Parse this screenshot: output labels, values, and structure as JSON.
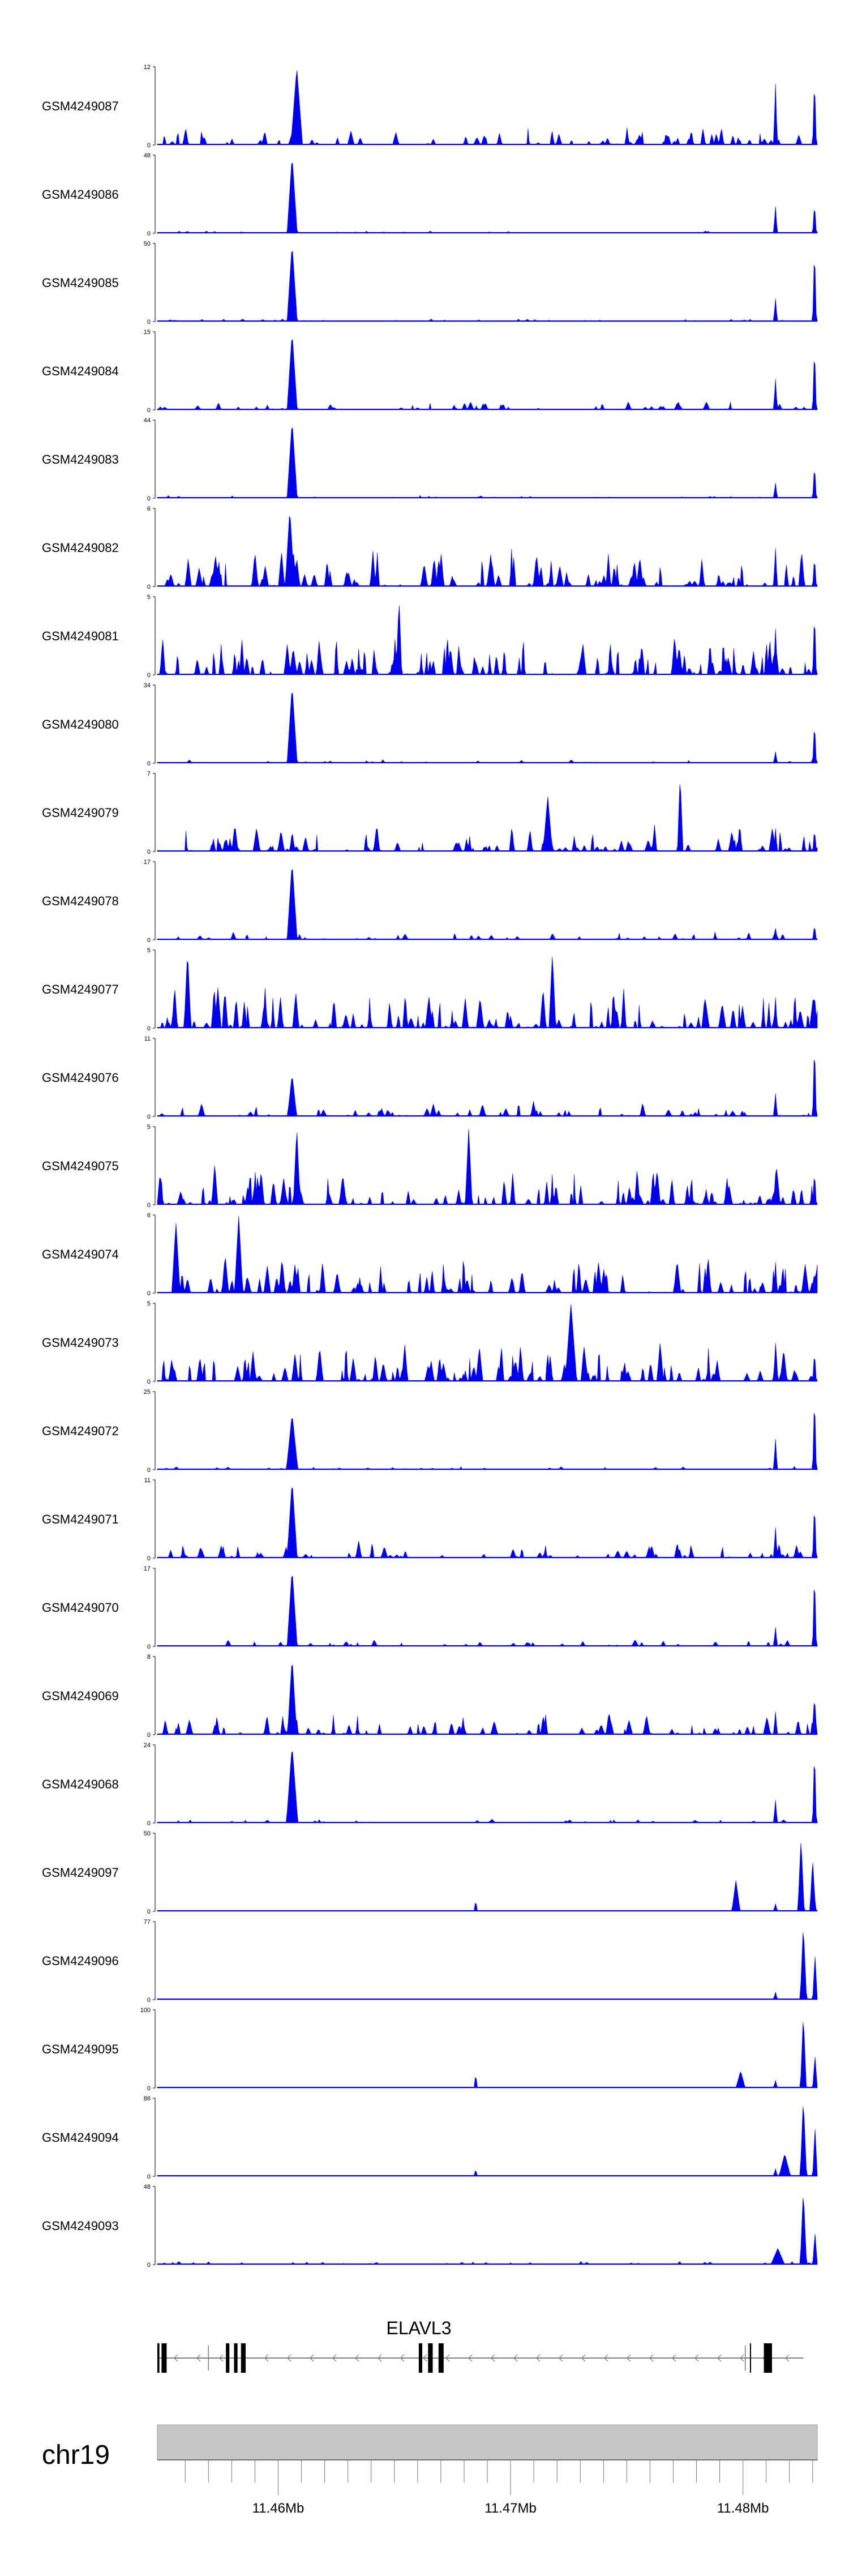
{
  "chart_data": {
    "type": "area",
    "x_range": [
      11.4548,
      11.4832
    ],
    "tracks": [
      {
        "label": "GSM4249087",
        "ymax": "12",
        "ymin": "0",
        "seed": 11,
        "peaks": [
          [
            11.4608,
            12,
            0.00025
          ]
        ],
        "noise": 0.25,
        "tail": [
          0.8,
          0.9
        ]
      },
      {
        "label": "GSM4249086",
        "ymax": "48",
        "ymin": "0",
        "seed": 12,
        "peaks": [
          [
            11.4606,
            48,
            0.00022
          ]
        ],
        "noise": 0.04,
        "tail": [
          0.35,
          0.4
        ]
      },
      {
        "label": "GSM4249085",
        "ymax": "50",
        "ymin": "0",
        "seed": 13,
        "peaks": [
          [
            11.4606,
            50,
            0.00022
          ]
        ],
        "noise": 0.04,
        "tail": [
          0.3,
          1.0
        ]
      },
      {
        "label": "GSM4249084",
        "ymax": "15",
        "ymin": "0",
        "seed": 14,
        "peaks": [
          [
            11.4606,
            15,
            0.00022
          ]
        ],
        "noise": 0.12,
        "tail": [
          0.4,
          0.85
        ]
      },
      {
        "label": "GSM4249083",
        "ymax": "44",
        "ymin": "0",
        "seed": 15,
        "peaks": [
          [
            11.4606,
            44,
            0.00022
          ]
        ],
        "noise": 0.04,
        "tail": [
          0.2,
          0.45
        ]
      },
      {
        "label": "GSM4249082",
        "ymax": "6",
        "ymin": "0",
        "seed": 16,
        "peaks": [
          [
            11.4605,
            6,
            0.0002
          ]
        ],
        "noise": 0.55,
        "tail": [
          0.5,
          0.4
        ]
      },
      {
        "label": "GSM4249081",
        "ymax": "5",
        "ymin": "0",
        "seed": 17,
        "peaks": [
          [
            11.4652,
            5,
            0.00012
          ]
        ],
        "noise": 0.6,
        "tail": [
          0.6,
          0.85
        ]
      },
      {
        "label": "GSM4249080",
        "ymax": "34",
        "ymin": "0",
        "seed": 18,
        "peaks": [
          [
            11.4606,
            34,
            0.00022
          ]
        ],
        "noise": 0.05,
        "tail": [
          0.15,
          0.55
        ]
      },
      {
        "label": "GSM4249079",
        "ymax": "7",
        "ymin": "0",
        "seed": 19,
        "peaks": [
          [
            11.4773,
            7,
            0.00012
          ],
          [
            11.4716,
            5,
            0.0002
          ]
        ],
        "noise": 0.4,
        "tail": [
          0.3,
          0.3
        ]
      },
      {
        "label": "GSM4249078",
        "ymax": "17",
        "ymin": "0",
        "seed": 20,
        "peaks": [
          [
            11.4606,
            17,
            0.00022
          ]
        ],
        "noise": 0.12,
        "tail": [
          0.15,
          0.2
        ]
      },
      {
        "label": "GSM4249077",
        "ymax": "5",
        "ymin": "0",
        "seed": 21,
        "peaks": [
          [
            11.4561,
            5,
            0.00015
          ],
          [
            11.4718,
            4.8,
            0.00015
          ]
        ],
        "noise": 0.6,
        "tail": [
          0.4,
          0.5
        ]
      },
      {
        "label": "GSM4249076",
        "ymax": "11",
        "ymin": "0",
        "seed": 22,
        "peaks": [
          [
            11.4606,
            6,
            0.0002
          ]
        ],
        "noise": 0.22,
        "tail": [
          0.3,
          1.0
        ]
      },
      {
        "label": "GSM4249075",
        "ymax": "5",
        "ymin": "0",
        "seed": 23,
        "peaks": [
          [
            11.4608,
            5,
            0.00015
          ],
          [
            11.4682,
            5,
            0.00015
          ]
        ],
        "noise": 0.6,
        "tail": [
          0.4,
          0.45
        ]
      },
      {
        "label": "GSM4249074",
        "ymax": "6",
        "ymin": "0",
        "seed": 24,
        "peaks": [
          [
            11.4583,
            6,
            0.00018
          ],
          [
            11.4556,
            5.5,
            0.00018
          ]
        ],
        "noise": 0.55,
        "tail": [
          0.4,
          0.3
        ]
      },
      {
        "label": "GSM4249073",
        "ymax": "5",
        "ymin": "0",
        "seed": 25,
        "peaks": [
          [
            11.4726,
            5,
            0.00025
          ]
        ],
        "noise": 0.6,
        "tail": [
          0.5,
          0.4
        ]
      },
      {
        "label": "GSM4249072",
        "ymax": "25",
        "ymin": "0",
        "seed": 26,
        "peaks": [
          [
            11.4606,
            18,
            0.00025
          ]
        ],
        "noise": 0.05,
        "tail": [
          0.4,
          1.0
        ]
      },
      {
        "label": "GSM4249071",
        "ymax": "11",
        "ymin": "0",
        "seed": 27,
        "peaks": [
          [
            11.4606,
            11,
            0.00022
          ]
        ],
        "noise": 0.25,
        "tail": [
          0.4,
          0.75
        ]
      },
      {
        "label": "GSM4249070",
        "ymax": "17",
        "ymin": "0",
        "seed": 28,
        "peaks": [
          [
            11.4606,
            17,
            0.00022
          ]
        ],
        "noise": 0.1,
        "tail": [
          0.25,
          1.0
        ]
      },
      {
        "label": "GSM4249069",
        "ymax": "8",
        "ymin": "0",
        "seed": 29,
        "peaks": [
          [
            11.4606,
            8,
            0.0002
          ]
        ],
        "noise": 0.3,
        "tail": [
          0.3,
          0.55
        ]
      },
      {
        "label": "GSM4249068",
        "ymax": "24",
        "ymin": "0",
        "seed": 30,
        "peaks": [
          [
            11.4606,
            24,
            0.00025
          ]
        ],
        "noise": 0.06,
        "tail": [
          0.3,
          1.0
        ]
      },
      {
        "label": "GSM4249097",
        "ymax": "50",
        "ymin": "0",
        "seed": 31,
        "peaks": [
          [
            11.4797,
            20,
            0.00018
          ],
          [
            11.4825,
            47,
            0.00014
          ],
          [
            11.483,
            34,
            0.00012
          ],
          [
            11.4685,
            8,
            6e-05
          ]
        ],
        "noise": 0.015,
        "tail": [
          0.1,
          0.2
        ]
      },
      {
        "label": "GSM4249096",
        "ymax": "77",
        "ymin": "0",
        "seed": 32,
        "peaks": [
          [
            11.4826,
            74,
            0.00014
          ],
          [
            11.4831,
            45,
            0.0001
          ]
        ],
        "noise": 0.012,
        "tail": [
          0.1,
          0.15
        ]
      },
      {
        "label": "GSM4249095",
        "ymax": "100",
        "ymin": "0",
        "seed": 33,
        "peaks": [
          [
            11.4826,
            95,
            0.00013
          ],
          [
            11.4831,
            42,
            0.0001
          ],
          [
            11.4799,
            22,
            0.0002
          ],
          [
            11.4685,
            19,
            7e-05
          ]
        ],
        "noise": 0.012,
        "tail": [
          0.1,
          0.15
        ]
      },
      {
        "label": "GSM4249094",
        "ymax": "86",
        "ymin": "0",
        "seed": 34,
        "peaks": [
          [
            11.4826,
            86,
            0.00014
          ],
          [
            11.4831,
            55,
            0.0001
          ],
          [
            11.4818,
            25,
            0.00025
          ],
          [
            11.4685,
            9,
            6e-05
          ]
        ],
        "noise": 0.015,
        "tail": [
          0.1,
          0.15
        ]
      },
      {
        "label": "GSM4249093",
        "ymax": "48",
        "ymin": "0",
        "seed": 35,
        "peaks": [
          [
            11.4826,
            46,
            0.00014
          ],
          [
            11.4831,
            20,
            0.0001
          ],
          [
            11.4815,
            10,
            0.0003
          ]
        ],
        "noise": 0.05,
        "tail": [
          0.1,
          0.15
        ]
      }
    ],
    "gene": {
      "name": "ELAVL3",
      "start": 11.4548,
      "end": 11.4826,
      "strand": "-",
      "exons": [
        [
          11.4548,
          11.45484
        ],
        [
          11.45484,
          11.45488
        ],
        [
          11.45498,
          11.4552
        ],
        [
          11.45775,
          11.4579
        ],
        [
          11.4581,
          11.45825
        ],
        [
          11.4584,
          11.4586
        ],
        [
          11.46605,
          11.4662
        ],
        [
          11.46645,
          11.46665
        ],
        [
          11.4669,
          11.46712
        ],
        [
          11.4803,
          11.48035
        ],
        [
          11.4809,
          11.48125
        ]
      ]
    },
    "chromosome": {
      "label": "chr19"
    },
    "x_ticks": [
      11.456,
      11.457,
      11.458,
      11.459,
      11.46,
      11.461,
      11.462,
      11.463,
      11.464,
      11.465,
      11.466,
      11.467,
      11.468,
      11.469,
      11.47,
      11.471,
      11.472,
      11.473,
      11.474,
      11.475,
      11.476,
      11.477,
      11.478,
      11.479,
      11.48,
      11.481,
      11.482,
      11.483
    ],
    "x_tick_labels": [
      {
        "value": 11.46,
        "label": "11.46Mb"
      },
      {
        "value": 11.47,
        "label": "11.47Mb"
      },
      {
        "value": 11.48,
        "label": "11.48Mb"
      }
    ],
    "colors": {
      "signal": "#0000ee",
      "axis": "#000000",
      "ideogram": "#c6c6c6",
      "ideogram_border": "#999999",
      "gene": "#000000"
    }
  }
}
